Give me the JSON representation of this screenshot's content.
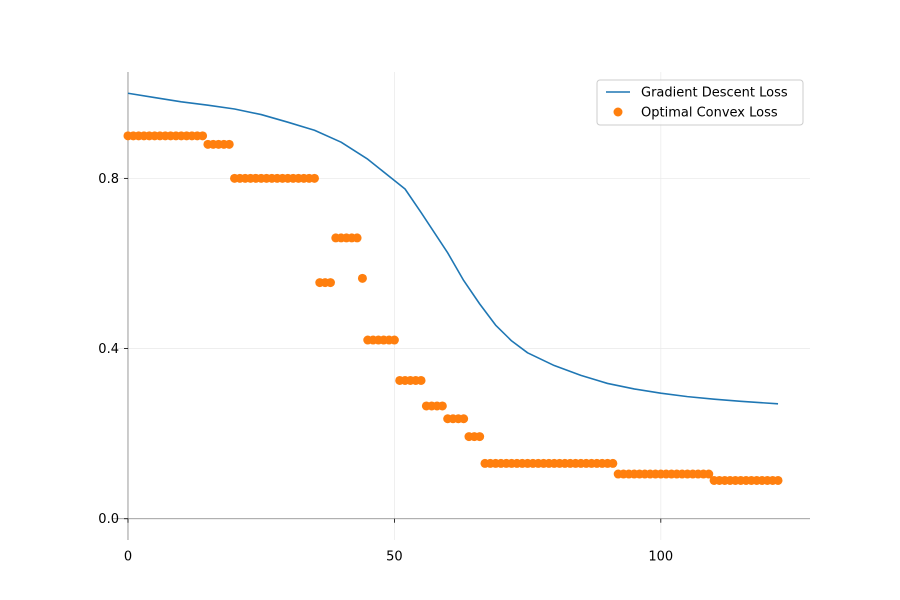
{
  "chart_data": {
    "type": "line+scatter",
    "title": "",
    "xlabel": "",
    "ylabel": "",
    "xlim": [
      -3,
      128
    ],
    "ylim": [
      -0.05,
      1.05
    ],
    "xticks": [
      0,
      50,
      100
    ],
    "yticks": [
      0.0,
      0.4,
      0.8
    ],
    "xtick_labels": [
      "0",
      "50",
      "100"
    ],
    "ytick_labels": [
      "0.0",
      "0.4",
      "0.8"
    ],
    "grid": true,
    "legend_position": "top-right",
    "colors": {
      "line": "#1f77b4",
      "scatter": "#ff7f0e",
      "grid": "#ebebeb",
      "axis": "#808080"
    },
    "line_series": {
      "name": "Gradient Descent Loss",
      "x": [
        0,
        5,
        10,
        15,
        20,
        25,
        30,
        35,
        40,
        45,
        50,
        52,
        55,
        60,
        63,
        66,
        69,
        72,
        75,
        80,
        85,
        90,
        95,
        100,
        105,
        110,
        115,
        122
      ],
      "y": [
        1.0,
        0.99,
        0.98,
        0.972,
        0.963,
        0.95,
        0.932,
        0.913,
        0.885,
        0.845,
        0.795,
        0.775,
        0.72,
        0.625,
        0.56,
        0.505,
        0.455,
        0.418,
        0.39,
        0.36,
        0.337,
        0.318,
        0.305,
        0.295,
        0.287,
        0.281,
        0.276,
        0.27
      ]
    },
    "scatter_series": {
      "name": "Optimal Convex Loss",
      "segments": [
        {
          "x_start": 0,
          "x_end": 14,
          "y": 0.9
        },
        {
          "x_start": 15,
          "x_end": 19,
          "y": 0.88
        },
        {
          "x_start": 20,
          "x_end": 35,
          "y": 0.8
        },
        {
          "x_start": 36,
          "x_end": 38,
          "y": 0.555
        },
        {
          "x_start": 39,
          "x_end": 43,
          "y": 0.66
        },
        {
          "x_start": 44,
          "x_end": 44,
          "y": 0.565
        },
        {
          "x_start": 45,
          "x_end": 50,
          "y": 0.42
        },
        {
          "x_start": 51,
          "x_end": 55,
          "y": 0.325
        },
        {
          "x_start": 56,
          "x_end": 59,
          "y": 0.265
        },
        {
          "x_start": 60,
          "x_end": 63,
          "y": 0.235
        },
        {
          "x_start": 64,
          "x_end": 66,
          "y": 0.193
        },
        {
          "x_start": 67,
          "x_end": 91,
          "y": 0.13
        },
        {
          "x_start": 92,
          "x_end": 109,
          "y": 0.105
        },
        {
          "x_start": 110,
          "x_end": 122,
          "y": 0.09
        }
      ]
    }
  }
}
